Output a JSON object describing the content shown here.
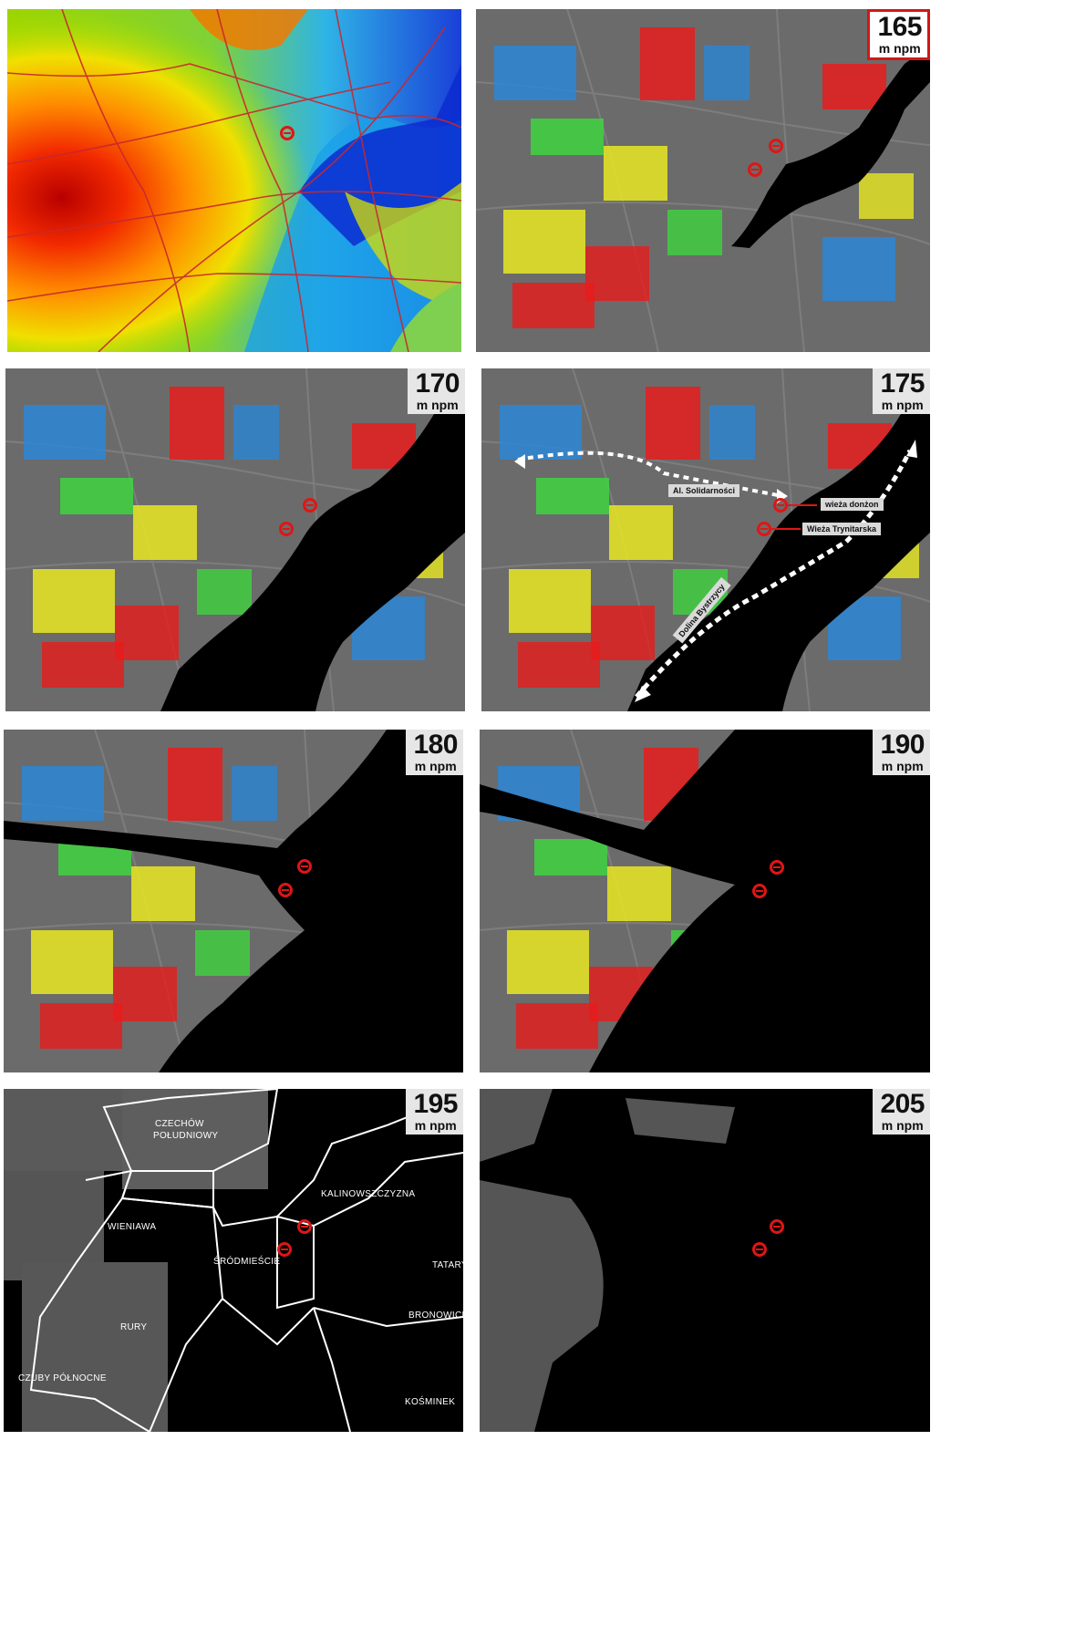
{
  "panels": [
    {
      "elevation": "",
      "unit": ""
    },
    {
      "elevation": "165",
      "unit": "m npm"
    },
    {
      "elevation": "170",
      "unit": "m npm"
    },
    {
      "elevation": "175",
      "unit": "m npm"
    },
    {
      "elevation": "180",
      "unit": "m npm"
    },
    {
      "elevation": "190",
      "unit": "m npm"
    },
    {
      "elevation": "195",
      "unit": "m npm"
    },
    {
      "elevation": "205",
      "unit": "m npm"
    }
  ],
  "annotations": {
    "al_solidarnosci": "Al. Solidarności",
    "wieza_donzon": "wieża donżon",
    "wieza_trynitarska": "Wieża Trynitarska",
    "dolina_bystrzycy": "Dolina Bystrzycy"
  },
  "districts": {
    "czechow": "CZECHÓW",
    "poludniowy": "POŁUDNIOWY",
    "wieniawa": "WIENIAWA",
    "srodmiescie": "ŚRÓDMIEŚCIE",
    "kalinowszczyzna": "KALINOWSZCZYZNA",
    "tatary": "TATARY",
    "rury": "RURY",
    "bronowice": "BRONOWICE",
    "czuby_polnocne": "CZUBY PÓŁNOCNE",
    "kosminek": "KOŚMINEK"
  },
  "colors": {
    "building_red": "#e81c1c",
    "building_yellow": "#e8e822",
    "building_green": "#3fd43f",
    "building_blue": "#2b86d6",
    "flood_black": "#000000",
    "landmark_red": "#e01515"
  }
}
